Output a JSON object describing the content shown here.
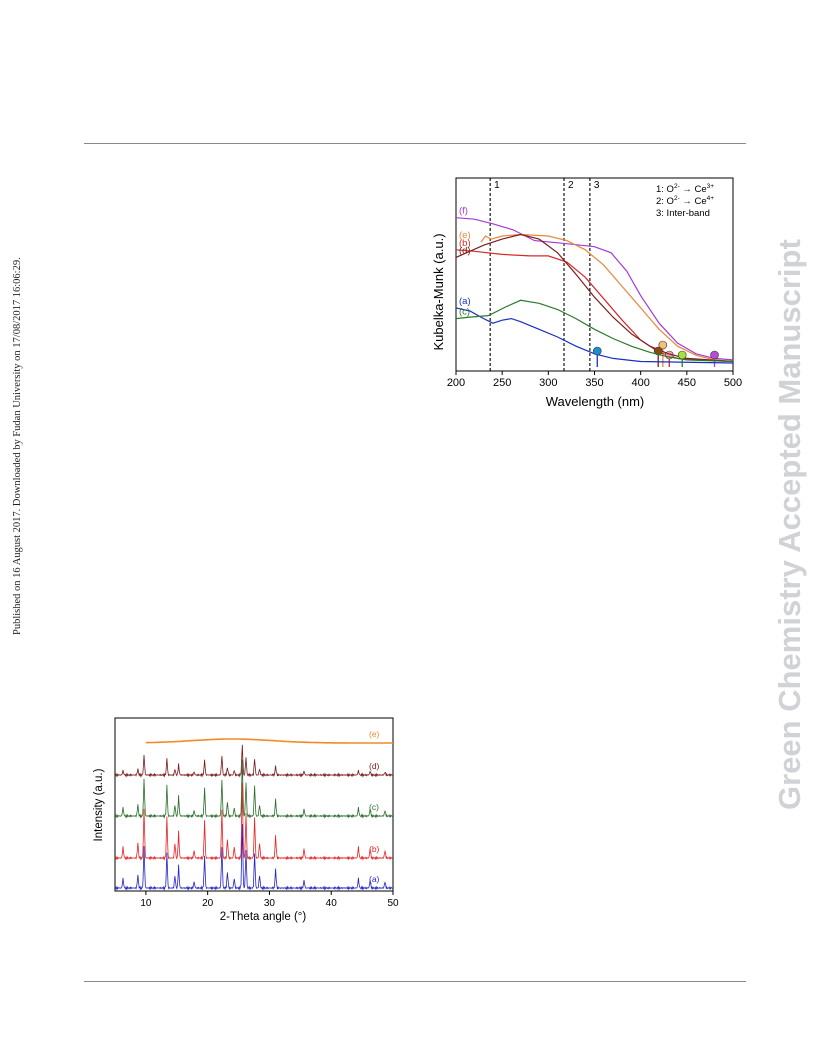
{
  "sidebar": {
    "published_note": "Published on 16 August 2017. Downloaded by Fudan University on 17/08/2017 16:06:29."
  },
  "watermark": {
    "text": "Green Chemistry Accepted Manuscript"
  },
  "chart_data": [
    {
      "type": "line",
      "xlabel": "Wavelength (nm)",
      "ylabel": "Kubelka-Munk (a.u.)",
      "xlim": [
        200,
        500
      ],
      "xticks": [
        200,
        250,
        300,
        350,
        400,
        450,
        500
      ],
      "reference_lines": [
        {
          "label": "1",
          "x": 237
        },
        {
          "label": "2",
          "x": 317
        },
        {
          "label": "3",
          "x": 345
        }
      ],
      "legend": [
        {
          "num": "1:",
          "from": "O",
          "from_sup": "2-",
          "to": "Ce",
          "to_sup": "3+"
        },
        {
          "num": "2:",
          "from": "O",
          "from_sup": "2-",
          "to": "Ce",
          "to_sup": "4+"
        },
        {
          "num": "3:",
          "text": "Inter-band"
        }
      ],
      "legend_position": "top-right",
      "series": [
        {
          "name": "(f)",
          "color": "#a53ad6",
          "points": [
            [
              200,
              0.95
            ],
            [
              220,
              0.94
            ],
            [
              240,
              0.91
            ],
            [
              262,
              0.87
            ],
            [
              285,
              0.8
            ],
            [
              320,
              0.78
            ],
            [
              350,
              0.76
            ],
            [
              368,
              0.72
            ],
            [
              385,
              0.6
            ],
            [
              400,
              0.44
            ],
            [
              420,
              0.26
            ],
            [
              440,
              0.13
            ],
            [
              460,
              0.06
            ],
            [
              480,
              0.03
            ],
            [
              500,
              0.02
            ]
          ],
          "edge_marker": {
            "x": 480,
            "color": "#b84ad8"
          }
        },
        {
          "name": "(e)",
          "color": "#e8873a",
          "points": [
            [
              227,
              0.79
            ],
            [
              232,
              0.83
            ],
            [
              238,
              0.81
            ],
            [
              250,
              0.83
            ],
            [
              270,
              0.84
            ],
            [
              300,
              0.83
            ],
            [
              320,
              0.8
            ],
            [
              340,
              0.74
            ],
            [
              360,
              0.64
            ],
            [
              380,
              0.5
            ],
            [
              400,
              0.36
            ],
            [
              420,
              0.22
            ],
            [
              440,
              0.11
            ],
            [
              460,
              0.05
            ],
            [
              480,
              0.02
            ],
            [
              500,
              0.01
            ]
          ],
          "edge_marker": {
            "x": 424,
            "color": "#f5be7a"
          }
        },
        {
          "name": "(b)",
          "color": "#d62a2a",
          "points": [
            [
              200,
              0.74
            ],
            [
              220,
              0.73
            ],
            [
              250,
              0.71
            ],
            [
              280,
              0.7
            ],
            [
              300,
              0.7
            ],
            [
              320,
              0.66
            ],
            [
              340,
              0.56
            ],
            [
              360,
              0.42
            ],
            [
              380,
              0.28
            ],
            [
              400,
              0.15
            ],
            [
              420,
              0.07
            ],
            [
              440,
              0.03
            ],
            [
              460,
              0.02
            ],
            [
              500,
              0.01
            ]
          ],
          "edge_marker": {
            "x": 431,
            "color": "#f0a0a8"
          }
        },
        {
          "name": "(d)",
          "color": "#7b1f1f",
          "points": [
            [
              200,
              0.69
            ],
            [
              230,
              0.77
            ],
            [
              250,
              0.81
            ],
            [
              270,
              0.84
            ],
            [
              290,
              0.81
            ],
            [
              310,
              0.72
            ],
            [
              330,
              0.58
            ],
            [
              350,
              0.43
            ],
            [
              370,
              0.3
            ],
            [
              390,
              0.19
            ],
            [
              410,
              0.11
            ],
            [
              430,
              0.06
            ],
            [
              450,
              0.03
            ],
            [
              500,
              0.01
            ]
          ],
          "edge_marker": {
            "x": 419,
            "color": "#8a4a14"
          }
        },
        {
          "name": "(a)",
          "color": "#1b2fc0",
          "points": [
            [
              200,
              0.36
            ],
            [
              215,
              0.34
            ],
            [
              230,
              0.29
            ],
            [
              240,
              0.26
            ],
            [
              250,
              0.28
            ],
            [
              260,
              0.29
            ],
            [
              270,
              0.27
            ],
            [
              290,
              0.22
            ],
            [
              310,
              0.17
            ],
            [
              330,
              0.11
            ],
            [
              350,
              0.06
            ],
            [
              370,
              0.03
            ],
            [
              400,
              0.01
            ],
            [
              500,
              0.0
            ]
          ],
          "edge_marker": {
            "x": 353,
            "color": "#1a8fd0"
          }
        },
        {
          "name": "(c)",
          "color": "#2a7a2a",
          "points": [
            [
              200,
              0.29
            ],
            [
              215,
              0.3
            ],
            [
              235,
              0.31
            ],
            [
              255,
              0.37
            ],
            [
              270,
              0.41
            ],
            [
              290,
              0.39
            ],
            [
              310,
              0.35
            ],
            [
              330,
              0.29
            ],
            [
              350,
              0.22
            ],
            [
              370,
              0.16
            ],
            [
              390,
              0.11
            ],
            [
              410,
              0.07
            ],
            [
              430,
              0.04
            ],
            [
              450,
              0.02
            ],
            [
              500,
              0.01
            ]
          ],
          "edge_marker": {
            "x": 445,
            "color": "#a6e03a"
          }
        }
      ]
    },
    {
      "type": "line",
      "xlabel": "2-Theta angle (°)",
      "ylabel": "Intensity (a.u.)",
      "xlim": [
        5,
        50
      ],
      "xticks": [
        10,
        20,
        30,
        40,
        50
      ],
      "peaks_2theta": [
        6.3,
        8.7,
        9.7,
        13.4,
        14.7,
        15.3,
        17.8,
        19.5,
        22.3,
        23.2,
        24.3,
        25.6,
        26.2,
        27.6,
        28.4,
        31.0,
        35.6,
        44.4,
        46.3,
        48.7
      ],
      "series": [
        {
          "name": "(e)",
          "color": "#f08a28",
          "profile": "amorphous"
        },
        {
          "name": "(d)",
          "color": "#7a1a1a",
          "intensity_scale": 0.4
        },
        {
          "name": "(c)",
          "color": "#2a6e2a",
          "intensity_scale": 0.75
        },
        {
          "name": "(b)",
          "color": "#e62525",
          "intensity_scale": 1.0
        },
        {
          "name": "(a)",
          "color": "#2424c8",
          "intensity_scale": 0.85
        }
      ]
    }
  ]
}
